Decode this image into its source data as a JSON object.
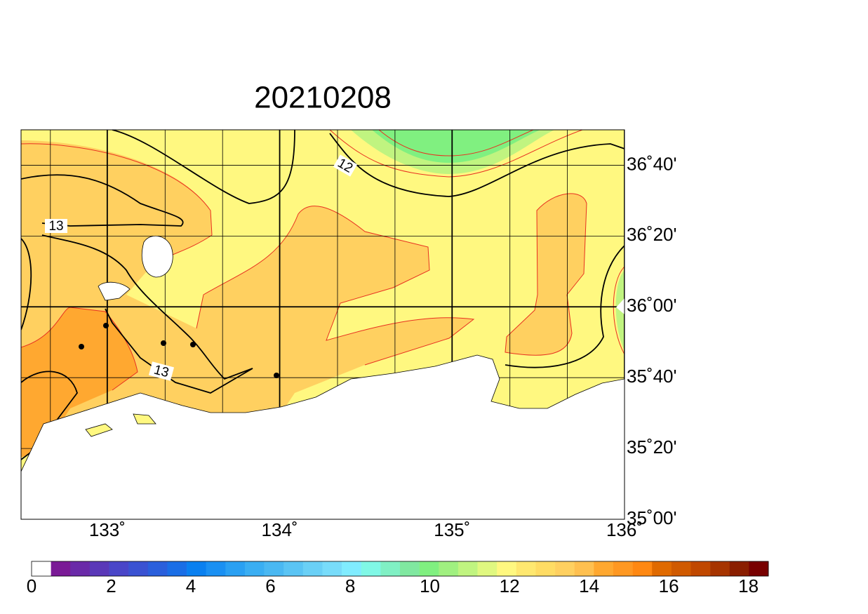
{
  "title": "20210208",
  "map": {
    "xlim": [
      132.5,
      136.0
    ],
    "ylim": [
      35.0,
      36.8333
    ],
    "xticks": [
      {
        "value": 133,
        "label": "133˚"
      },
      {
        "value": 134,
        "label": "134˚"
      },
      {
        "value": 135,
        "label": "135˚"
      },
      {
        "value": 136,
        "label": "136˚"
      }
    ],
    "yticks": [
      {
        "value": 35.0,
        "label": "35˚00'"
      },
      {
        "value": 35.3333,
        "label": "35˚20'"
      },
      {
        "value": 35.6667,
        "label": "35˚40'"
      },
      {
        "value": 36.0,
        "label": "36˚00'"
      },
      {
        "value": 36.3333,
        "label": "36˚20'"
      },
      {
        "value": 36.6667,
        "label": "36˚40'"
      }
    ],
    "contour_labels": [
      "12",
      "13",
      "13"
    ]
  },
  "colorbar": {
    "range": [
      0,
      18.5
    ],
    "ticks": [
      0,
      2,
      4,
      6,
      8,
      10,
      12,
      14,
      16,
      18
    ],
    "colors": [
      "#ffffff",
      "#7a1a96",
      "#6a2aa8",
      "#5a38b8",
      "#4a46c8",
      "#3a52d2",
      "#2a5fdc",
      "#1a6ee6",
      "#0a80f0",
      "#1a90f2",
      "#2aa0f2",
      "#3aaef2",
      "#4ab8f2",
      "#5ac4f4",
      "#6ad0f6",
      "#78dcfa",
      "#80ecff",
      "#80f8e6",
      "#80f0c4",
      "#80e8a0",
      "#80f080",
      "#a0f080",
      "#c0f480",
      "#e0f880",
      "#fff880",
      "#ffe870",
      "#ffdc64",
      "#ffd060",
      "#ffc050",
      "#ffa830",
      "#ff9822",
      "#ff8812",
      "#e06a00",
      "#d05a00",
      "#c04800",
      "#a63400",
      "#8a1e00",
      "#780000"
    ]
  }
}
